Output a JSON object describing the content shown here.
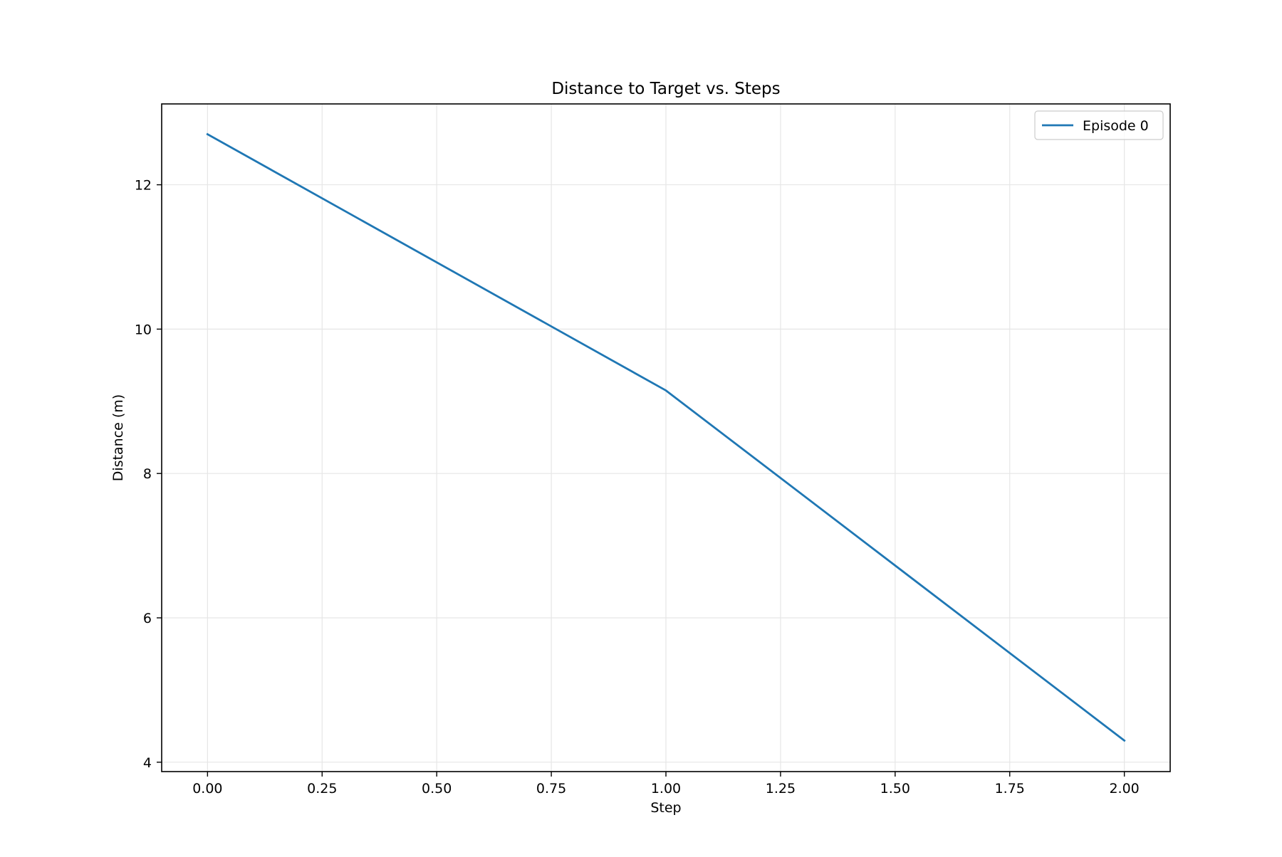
{
  "chart_data": {
    "type": "line",
    "title": "Distance to Target vs. Steps",
    "xlabel": "Step",
    "ylabel": "Distance (m)",
    "xlim": [
      -0.1,
      2.1
    ],
    "ylim": [
      3.87,
      13.12
    ],
    "x_ticks": [
      0.0,
      0.25,
      0.5,
      0.75,
      1.0,
      1.25,
      1.5,
      1.75,
      2.0
    ],
    "x_tick_labels": [
      "0.00",
      "0.25",
      "0.50",
      "0.75",
      "1.00",
      "1.25",
      "1.50",
      "1.75",
      "2.00"
    ],
    "y_ticks": [
      4,
      6,
      8,
      10,
      12
    ],
    "y_tick_labels": [
      "4",
      "6",
      "8",
      "10",
      "12"
    ],
    "grid": true,
    "legend_position": "top-right",
    "series": [
      {
        "name": "Episode 0",
        "color": "#1f77b4",
        "x": [
          0,
          1,
          2
        ],
        "y": [
          12.7,
          9.15,
          4.3
        ]
      }
    ]
  }
}
